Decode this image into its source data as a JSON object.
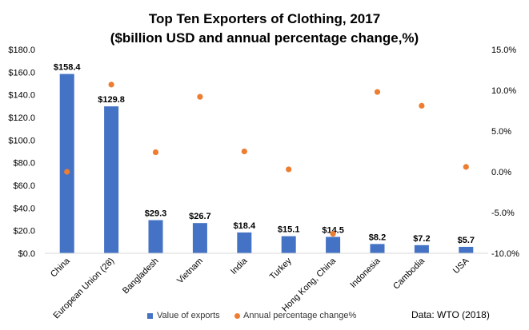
{
  "chart_data": {
    "type": "bar",
    "title": "Top Ten Exporters of Clothing, 2017",
    "subtitle": "($billion USD and annual percentage change,%)",
    "categories": [
      "China",
      "European Union (28)",
      "Bangladesh",
      "Vietnam",
      "India",
      "Turkey",
      "Hong Kong, China",
      "Indonesia",
      "Cambodia",
      "USA"
    ],
    "series": [
      {
        "name": "Value of exports",
        "type": "bar",
        "axis": "left",
        "color": "#4472C4",
        "values": [
          158.4,
          129.8,
          29.3,
          26.7,
          18.4,
          15.1,
          14.5,
          8.2,
          7.2,
          5.7
        ],
        "labels": [
          "$158.4",
          "$129.8",
          "$29.3",
          "$26.7",
          "$18.4",
          "$15.1",
          "$14.5",
          "$8.2",
          "$7.2",
          "$5.7"
        ]
      },
      {
        "name": "Annual percentage change%",
        "type": "scatter",
        "axis": "right",
        "color": "#ED7D31",
        "values": [
          0.0,
          10.7,
          2.4,
          9.2,
          2.5,
          0.3,
          -7.6,
          9.8,
          8.1,
          0.6
        ]
      }
    ],
    "ylim": [
      0,
      180
    ],
    "yticks": [
      0,
      20,
      40,
      60,
      80,
      100,
      120,
      140,
      160,
      180
    ],
    "ytick_labels": [
      "$0.0",
      "$20.0",
      "$40.0",
      "$60.0",
      "$80.0",
      "$100.0",
      "$120.0",
      "$140.0",
      "$160.0",
      "$180.0"
    ],
    "y2lim": [
      -10,
      15
    ],
    "y2ticks": [
      -10,
      -5,
      0,
      5,
      10,
      15
    ],
    "y2tick_labels": [
      "-10.0%",
      "-5.0%",
      "0.0%",
      "5.0%",
      "10.0%",
      "15.0%"
    ],
    "xlabel": "",
    "ylabel": "",
    "grid": false,
    "legend_position": "bottom",
    "source": "Data: WTO (2018)"
  }
}
